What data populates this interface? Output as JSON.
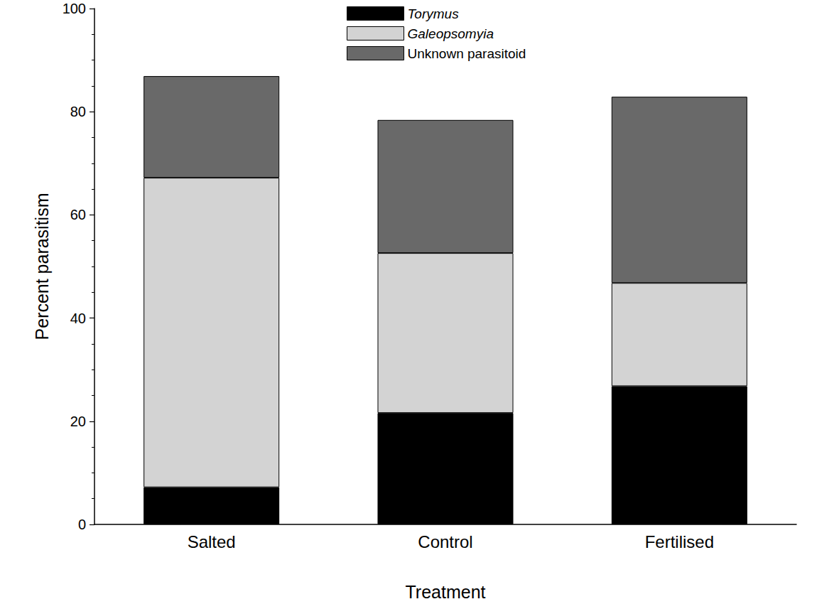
{
  "chart_data": {
    "type": "bar",
    "stacked": true,
    "x_label": "Treatment",
    "y_label": "Percent parasitism",
    "categories": [
      "Salted",
      "Control",
      "Fertilised"
    ],
    "series": [
      {
        "name": "Torymus",
        "color": "#000000",
        "values": [
          7.2,
          21.6,
          26.8
        ]
      },
      {
        "name": "Galeopsomyia",
        "color": "#d3d3d3",
        "values": [
          60.0,
          31.0,
          20.0
        ]
      },
      {
        "name": "Unknown parasitoid",
        "color": "#696969",
        "values": [
          19.7,
          25.8,
          36.1
        ]
      }
    ],
    "ylim": [
      0,
      100
    ],
    "yticks": [
      0,
      20,
      40,
      60,
      80,
      100
    ],
    "grid": false,
    "legend": "top"
  }
}
